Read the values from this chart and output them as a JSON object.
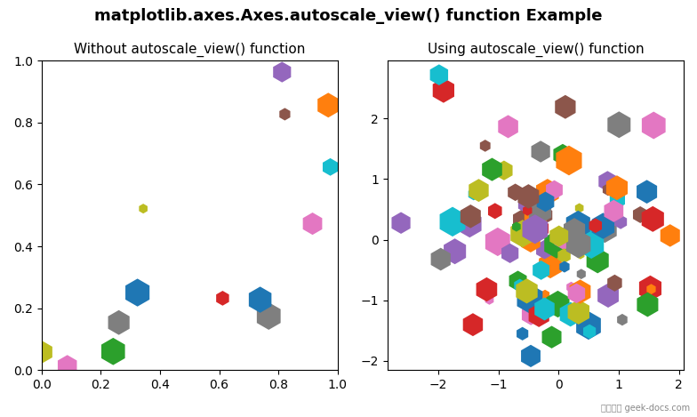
{
  "title": "matplotlib.axes.Axes.autoscale_view() function Example",
  "left_title": "Without autoscale_view() function",
  "right_title": "Using autoscale_view() function",
  "seed": 42,
  "n_points": 100,
  "background_color": "#ffffff",
  "title_fontsize": 13,
  "subtitle_fontsize": 11,
  "watermark": "极客教程 geek-docs.com",
  "left_xlim": [
    0.0,
    1.0
  ],
  "left_ylim": [
    0.0,
    1.0
  ],
  "size_min": 50,
  "size_max": 600
}
